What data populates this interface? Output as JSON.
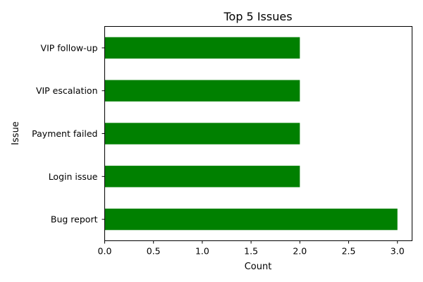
{
  "chart_data": {
    "type": "bar",
    "orientation": "horizontal",
    "title": "Top 5 Issues",
    "xlabel": "Count",
    "ylabel": "Issue",
    "categories": [
      "Bug report",
      "Login issue",
      "Payment failed",
      "VIP escalation",
      "VIP follow-up"
    ],
    "values": [
      3,
      2,
      2,
      2,
      2
    ],
    "xlim": [
      0,
      3.15
    ],
    "xticks": [
      "0.0",
      "0.5",
      "1.0",
      "1.5",
      "2.0",
      "2.5",
      "3.0"
    ],
    "bar_color": "#008000",
    "grid": false,
    "legend": "none"
  }
}
